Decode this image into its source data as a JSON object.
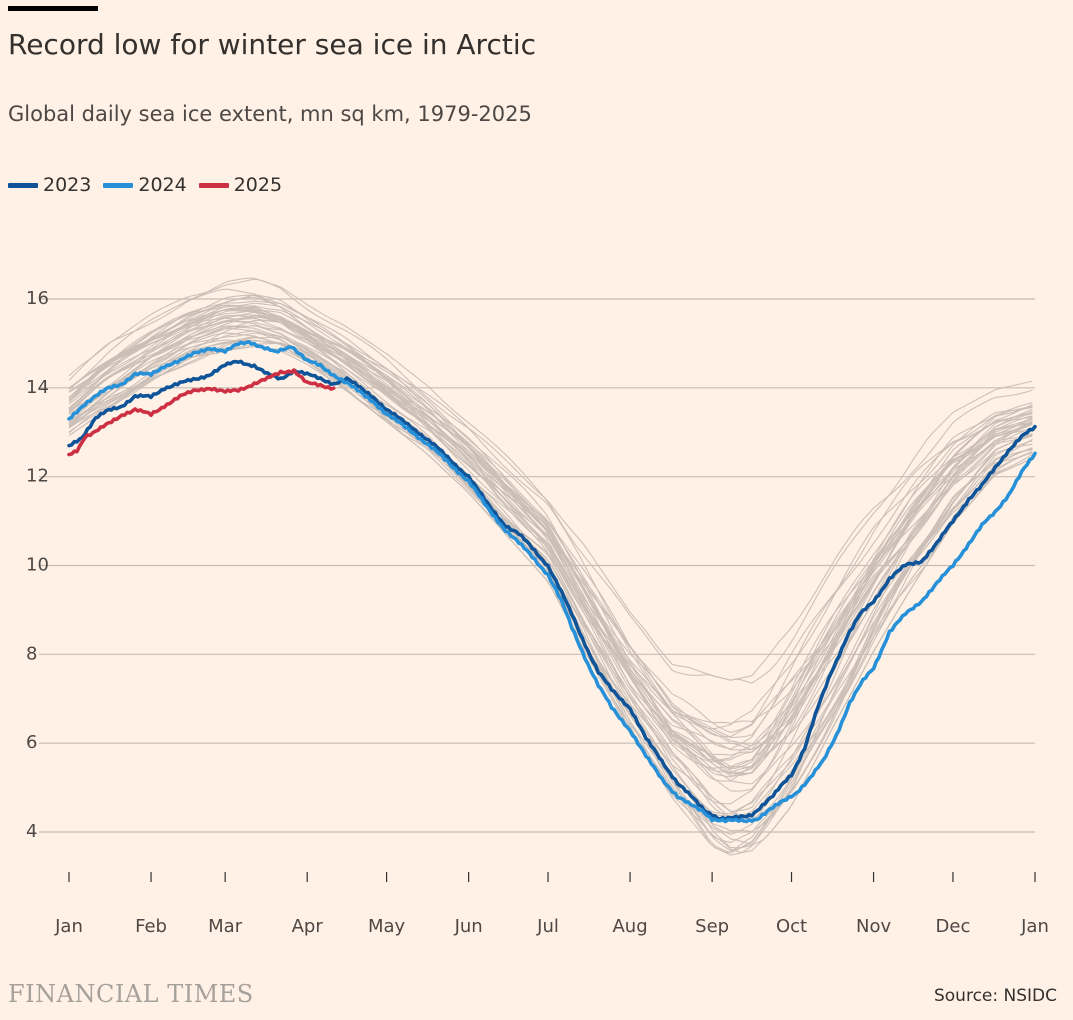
{
  "header": {
    "title": "Record low for winter sea ice in Arctic",
    "subtitle": "Global daily sea ice extent, mn sq km, 1979-2025"
  },
  "footer": {
    "logo": "FINANCIAL TIMES",
    "source": "Source: NSIDC"
  },
  "colors": {
    "background": "#FFF1E5",
    "historical": "#C9BEB6",
    "s2023": "#0F5499",
    "s2024": "#2690D8",
    "s2025": "#CC3042",
    "grid": "#C7BDB5"
  },
  "chart_data": {
    "type": "line",
    "title": "Record low for winter sea ice in Arctic",
    "subtitle": "Global daily sea ice extent, mn sq km, 1979-2025",
    "xlabel": "",
    "ylabel": "",
    "ylim": [
      3.2,
      16.8
    ],
    "yticks": [
      4,
      6,
      8,
      10,
      12,
      14,
      16
    ],
    "xlim": [
      0,
      365
    ],
    "xticks": [
      {
        "label": "Jan",
        "day": 0
      },
      {
        "label": "Feb",
        "day": 31
      },
      {
        "label": "Mar",
        "day": 59
      },
      {
        "label": "Apr",
        "day": 90
      },
      {
        "label": "May",
        "day": 120
      },
      {
        "label": "Jun",
        "day": 151
      },
      {
        "label": "Jul",
        "day": 181
      },
      {
        "label": "Aug",
        "day": 212
      },
      {
        "label": "Sep",
        "day": 243
      },
      {
        "label": "Oct",
        "day": 273
      },
      {
        "label": "Nov",
        "day": 304
      },
      {
        "label": "Dec",
        "day": 334
      },
      {
        "label": "Jan",
        "day": 365
      }
    ],
    "grid": true,
    "legend_position": "top-left",
    "legend": [
      "2023",
      "2024",
      "2025"
    ],
    "historical_envelope": {
      "day": [
        0,
        15,
        31,
        45,
        59,
        70,
        80,
        90,
        105,
        120,
        135,
        151,
        166,
        181,
        196,
        212,
        228,
        243,
        250,
        258,
        265,
        273,
        288,
        304,
        319,
        334,
        350,
        365
      ],
      "upper": [
        14.3,
        15.1,
        15.7,
        16.2,
        16.5,
        16.5,
        16.3,
        15.9,
        15.4,
        14.8,
        14.1,
        13.3,
        12.5,
        11.7,
        10.4,
        9.0,
        7.9,
        7.6,
        7.5,
        7.6,
        8.1,
        8.8,
        10.1,
        11.5,
        12.6,
        13.5,
        14.0,
        14.2
      ],
      "lower": [
        12.9,
        13.5,
        14.1,
        14.5,
        14.8,
        14.9,
        14.8,
        14.5,
        13.9,
        13.2,
        12.5,
        11.6,
        10.6,
        9.6,
        7.9,
        6.2,
        4.7,
        3.6,
        3.4,
        3.5,
        3.9,
        4.5,
        6.2,
        8.0,
        9.5,
        10.9,
        12.0,
        12.4
      ]
    },
    "series": [
      {
        "name": "2023",
        "color": "#0F5499",
        "day": [
          0,
          5,
          10,
          15,
          20,
          25,
          31,
          36,
          42,
          48,
          53,
          59,
          64,
          70,
          75,
          80,
          85,
          90,
          95,
          100,
          105,
          110,
          115,
          120,
          130,
          140,
          151,
          158,
          165,
          170,
          175,
          181,
          186,
          190,
          196,
          200,
          205,
          212,
          218,
          224,
          230,
          235,
          240,
          243,
          246,
          250,
          255,
          258,
          262,
          266,
          270,
          273,
          278,
          283,
          288,
          294,
          299,
          304,
          310,
          316,
          322,
          328,
          334,
          340,
          345,
          350,
          355,
          360,
          365
        ],
        "values": [
          12.7,
          12.9,
          13.3,
          13.5,
          13.6,
          13.8,
          13.8,
          14.0,
          14.1,
          14.2,
          14.3,
          14.5,
          14.6,
          14.5,
          14.3,
          14.2,
          14.4,
          14.3,
          14.2,
          14.1,
          14.2,
          14.0,
          13.8,
          13.5,
          13.1,
          12.6,
          12.0,
          11.4,
          10.9,
          10.7,
          10.4,
          10.0,
          9.4,
          8.9,
          8.1,
          7.6,
          7.2,
          6.8,
          6.1,
          5.6,
          5.1,
          4.8,
          4.5,
          4.4,
          4.3,
          4.3,
          4.35,
          4.4,
          4.6,
          4.8,
          5.1,
          5.3,
          5.9,
          6.8,
          7.6,
          8.4,
          8.9,
          9.2,
          9.7,
          10.0,
          10.1,
          10.5,
          11.0,
          11.5,
          11.8,
          12.2,
          12.6,
          12.9,
          13.1
        ]
      },
      {
        "name": "2024",
        "color": "#2690D8",
        "day": [
          0,
          5,
          10,
          15,
          20,
          25,
          31,
          36,
          42,
          48,
          53,
          59,
          64,
          68,
          73,
          78,
          84,
          90,
          95,
          100,
          105,
          110,
          115,
          120,
          130,
          140,
          151,
          158,
          165,
          170,
          175,
          181,
          186,
          190,
          196,
          200,
          205,
          212,
          218,
          224,
          230,
          235,
          240,
          243,
          248,
          255,
          260,
          265,
          270,
          275,
          280,
          285,
          290,
          295,
          300,
          304,
          310,
          316,
          322,
          328,
          334,
          340,
          345,
          350,
          355,
          360,
          365
        ],
        "values": [
          13.3,
          13.6,
          13.8,
          14.0,
          14.1,
          14.3,
          14.3,
          14.5,
          14.6,
          14.8,
          14.9,
          14.8,
          15.0,
          15.05,
          14.9,
          14.8,
          14.95,
          14.6,
          14.5,
          14.3,
          14.1,
          13.9,
          13.7,
          13.4,
          13.0,
          12.5,
          11.9,
          11.3,
          10.8,
          10.5,
          10.2,
          9.8,
          9.2,
          8.6,
          7.8,
          7.3,
          6.8,
          6.3,
          5.7,
          5.2,
          4.8,
          4.6,
          4.45,
          4.3,
          4.25,
          4.25,
          4.3,
          4.5,
          4.7,
          4.9,
          5.2,
          5.6,
          6.2,
          6.9,
          7.4,
          7.7,
          8.5,
          8.9,
          9.2,
          9.6,
          10.0,
          10.5,
          10.9,
          11.2,
          11.6,
          12.1,
          12.5
        ]
      },
      {
        "name": "2025",
        "color": "#CC3042",
        "day": [
          0,
          3,
          6,
          10,
          15,
          20,
          25,
          31,
          36,
          42,
          48,
          53,
          59,
          64,
          70,
          75,
          80,
          85,
          90,
          95,
          100
        ],
        "values": [
          12.5,
          12.6,
          12.9,
          13.0,
          13.2,
          13.4,
          13.5,
          13.4,
          13.6,
          13.8,
          13.95,
          14.0,
          13.9,
          13.95,
          14.1,
          14.2,
          14.35,
          14.4,
          14.1,
          14.05,
          14.0
        ]
      }
    ]
  }
}
